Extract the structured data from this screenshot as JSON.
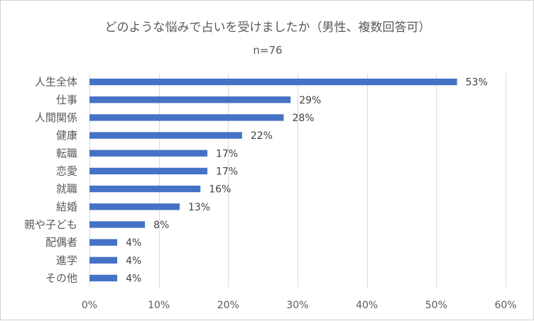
{
  "chart_data": {
    "type": "bar",
    "orientation": "horizontal",
    "title": "どのような悩みで占いを受けましたか（男性、複数回答可）",
    "subtitle": "n=76",
    "categories": [
      "人生全体",
      "仕事",
      "人間関係",
      "健康",
      "転職",
      "恋愛",
      "就職",
      "結婚",
      "親や子ども",
      "配偶者",
      "進学",
      "その他"
    ],
    "values": [
      53,
      29,
      28,
      22,
      17,
      17,
      16,
      13,
      8,
      4,
      4,
      4
    ],
    "data_labels": [
      "53%",
      "29%",
      "28%",
      "22%",
      "17%",
      "17%",
      "16%",
      "13%",
      "8%",
      "4%",
      "4%",
      "4%"
    ],
    "xlim": [
      0,
      60
    ],
    "x_ticks": [
      0,
      10,
      20,
      30,
      40,
      50,
      60
    ],
    "x_tick_labels": [
      "0%",
      "10%",
      "20%",
      "30%",
      "40%",
      "50%",
      "60%"
    ],
    "grid": true,
    "legend": "none",
    "bar_color": "#4472C4",
    "grid_color": "#D9D9D9"
  }
}
